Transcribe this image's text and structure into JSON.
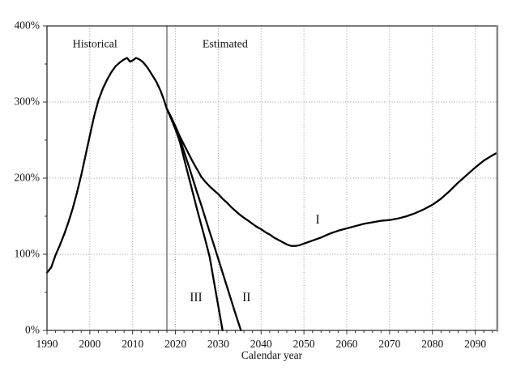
{
  "chart_data": {
    "type": "line",
    "title": "",
    "xlabel": "Calendar year",
    "ylabel": "",
    "xlim": [
      1990,
      2095
    ],
    "ylim": [
      0,
      400
    ],
    "x_ticks": [
      1990,
      2000,
      2010,
      2020,
      2030,
      2040,
      2050,
      2060,
      2070,
      2080,
      2090
    ],
    "x_tick_labels": [
      "1990",
      "2000",
      "2010",
      "2020",
      "2030",
      "2040",
      "2050",
      "2060",
      "2070",
      "2080",
      "2090"
    ],
    "x_minor_tick_step": 2,
    "y_ticks": [
      0,
      100,
      200,
      300,
      400
    ],
    "y_tick_labels": [
      "0%",
      "100%",
      "200%",
      "300%",
      "400%"
    ],
    "y_minor_ticks": [
      50,
      150,
      250,
      350
    ],
    "x_gridlines": [
      2000,
      2010,
      2020,
      2030,
      2040,
      2050,
      2060,
      2070,
      2080,
      2090
    ],
    "y_gridlines": [
      100,
      200,
      300
    ],
    "divider_x": 2018,
    "grid": "dotted",
    "legend_position": "none",
    "colors": {
      "line": "#000000",
      "grid": "#999999",
      "border": "#2a2a2a",
      "right_border": "#8a8a8a",
      "divider": "#333333",
      "tick": "#333333"
    },
    "annotations": [
      {
        "text": "Historical",
        "x": 2001.2,
        "y": 375,
        "kind": "region"
      },
      {
        "text": "Estimated",
        "x": 2031.6,
        "y": 375,
        "kind": "region"
      },
      {
        "text": "I",
        "x": 2053.2,
        "y": 144,
        "kind": "series"
      },
      {
        "text": "III",
        "x": 2024.8,
        "y": 42,
        "kind": "series"
      },
      {
        "text": "II",
        "x": 2036.6,
        "y": 42,
        "kind": "series"
      }
    ],
    "series": [
      {
        "name": "historical",
        "points": [
          [
            1990,
            76
          ],
          [
            1991,
            83
          ],
          [
            1992,
            99
          ],
          [
            1993,
            112
          ],
          [
            1994,
            126
          ],
          [
            1995,
            142
          ],
          [
            1996,
            160
          ],
          [
            1997,
            181
          ],
          [
            1998,
            204
          ],
          [
            1999,
            230
          ],
          [
            2000,
            256
          ],
          [
            2001,
            281
          ],
          [
            2002,
            302
          ],
          [
            2003,
            317
          ],
          [
            2004,
            329
          ],
          [
            2005,
            339
          ],
          [
            2006,
            347
          ],
          [
            2007,
            352
          ],
          [
            2008,
            356
          ],
          [
            2008.7,
            358
          ],
          [
            2009.4,
            353
          ],
          [
            2010.1,
            355
          ],
          [
            2010.8,
            358
          ],
          [
            2011.6,
            356
          ],
          [
            2012.5,
            352
          ],
          [
            2013.5,
            345
          ],
          [
            2014.5,
            336
          ],
          [
            2015.5,
            327
          ],
          [
            2016.5,
            315
          ],
          [
            2017.3,
            303
          ],
          [
            2018,
            291
          ]
        ]
      },
      {
        "name": "alternative-I",
        "points": [
          [
            2018,
            291
          ],
          [
            2019,
            280
          ],
          [
            2020,
            268
          ],
          [
            2021,
            255
          ],
          [
            2022,
            244
          ],
          [
            2023,
            233
          ],
          [
            2024,
            222
          ],
          [
            2025,
            212
          ],
          [
            2026,
            202
          ],
          [
            2027,
            195
          ],
          [
            2028,
            189
          ],
          [
            2029,
            184
          ],
          [
            2030,
            179
          ],
          [
            2031,
            173
          ],
          [
            2032,
            168
          ],
          [
            2033,
            162
          ],
          [
            2034,
            157
          ],
          [
            2035,
            152
          ],
          [
            2036,
            148
          ],
          [
            2037,
            144
          ],
          [
            2038,
            140
          ],
          [
            2039,
            136
          ],
          [
            2040,
            133
          ],
          [
            2041,
            129
          ],
          [
            2042,
            126
          ],
          [
            2043,
            122
          ],
          [
            2044,
            119
          ],
          [
            2045,
            116
          ],
          [
            2046,
            113
          ],
          [
            2047,
            111
          ],
          [
            2048,
            111
          ],
          [
            2049,
            112
          ],
          [
            2050,
            114
          ],
          [
            2052,
            118
          ],
          [
            2054,
            122
          ],
          [
            2056,
            127
          ],
          [
            2058,
            131
          ],
          [
            2060,
            134
          ],
          [
            2062,
            137
          ],
          [
            2064,
            140
          ],
          [
            2066,
            142
          ],
          [
            2068,
            144
          ],
          [
            2070,
            145
          ],
          [
            2072,
            147
          ],
          [
            2074,
            150
          ],
          [
            2076,
            154
          ],
          [
            2078,
            159
          ],
          [
            2080,
            165
          ],
          [
            2082,
            173
          ],
          [
            2084,
            183
          ],
          [
            2086,
            194
          ],
          [
            2088,
            204
          ],
          [
            2090,
            214
          ],
          [
            2092,
            223
          ],
          [
            2094,
            230
          ],
          [
            2095,
            233
          ]
        ]
      },
      {
        "name": "alternative-II",
        "points": [
          [
            2018,
            291
          ],
          [
            2019,
            280
          ],
          [
            2020,
            267
          ],
          [
            2021,
            252
          ],
          [
            2022,
            235
          ],
          [
            2023,
            218
          ],
          [
            2024,
            200
          ],
          [
            2025,
            182
          ],
          [
            2026,
            165
          ],
          [
            2027,
            147
          ],
          [
            2028,
            129
          ],
          [
            2029,
            112
          ],
          [
            2030,
            94
          ],
          [
            2031,
            76
          ],
          [
            2032,
            58
          ],
          [
            2033,
            40
          ],
          [
            2034,
            22
          ],
          [
            2035.3,
            0
          ]
        ]
      },
      {
        "name": "alternative-III",
        "points": [
          [
            2018,
            291
          ],
          [
            2019,
            278
          ],
          [
            2020,
            264
          ],
          [
            2021,
            248
          ],
          [
            2022,
            226
          ],
          [
            2023,
            204
          ],
          [
            2024,
            182
          ],
          [
            2025,
            160
          ],
          [
            2026,
            139
          ],
          [
            2027,
            118
          ],
          [
            2028,
            96
          ],
          [
            2029,
            64
          ],
          [
            2030,
            32
          ],
          [
            2031,
            0
          ]
        ]
      }
    ]
  }
}
